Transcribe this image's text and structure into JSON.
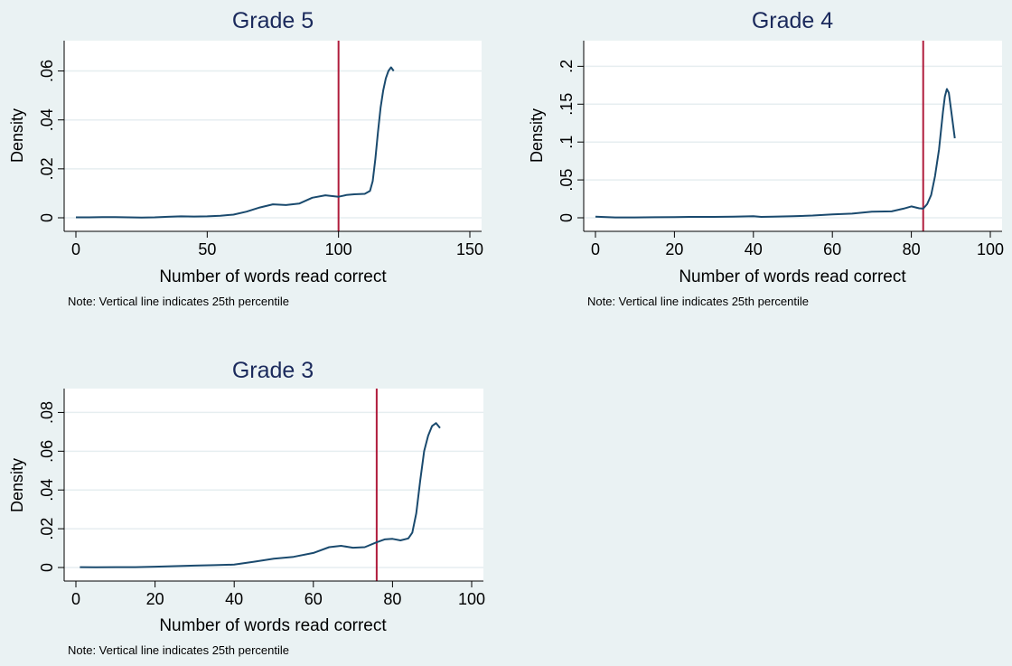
{
  "chart_data": [
    {
      "type": "line",
      "title": "Grade 5",
      "xlabel": "Number of words read correct",
      "ylabel": "Density",
      "note": "Note: Vertical line indicates 25th percentile",
      "xlim": [
        0,
        150
      ],
      "ylim": [
        0,
        0.065
      ],
      "xticks": [
        0,
        50,
        100,
        150
      ],
      "xtick_labels": [
        "0",
        "50",
        "100",
        "150"
      ],
      "yticks": [
        0,
        0.02,
        0.04,
        0.06
      ],
      "ytick_labels": [
        "0",
        ".02",
        ".04",
        ".06"
      ],
      "grid": true,
      "vline": 100,
      "series": [
        {
          "x": [
            0,
            5,
            10,
            15,
            20,
            25,
            30,
            35,
            40,
            45,
            50,
            55,
            60,
            65,
            70,
            75,
            80,
            85,
            90,
            95,
            100,
            103,
            106,
            110,
            112,
            113,
            114,
            115,
            116,
            117,
            118,
            119,
            120,
            121
          ],
          "values": [
            0.0002,
            0.0002,
            0.0003,
            0.0003,
            0.0002,
            0.0001,
            0.0002,
            0.0004,
            0.0006,
            0.0005,
            0.0006,
            0.0008,
            0.0013,
            0.0025,
            0.0042,
            0.0055,
            0.0052,
            0.0058,
            0.0082,
            0.0092,
            0.0086,
            0.0093,
            0.0096,
            0.0098,
            0.011,
            0.015,
            0.024,
            0.035,
            0.045,
            0.052,
            0.057,
            0.06,
            0.0615,
            0.06
          ]
        }
      ]
    },
    {
      "type": "line",
      "title": "Grade 4",
      "xlabel": "Number of words read correct",
      "ylabel": "Density",
      "note": "Note: Vertical line indicates 25th percentile",
      "xlim": [
        0,
        100
      ],
      "ylim": [
        0,
        0.21
      ],
      "xticks": [
        0,
        20,
        40,
        60,
        80,
        100
      ],
      "xtick_labels": [
        "0",
        "20",
        "40",
        "60",
        "80",
        "100"
      ],
      "yticks": [
        0,
        0.05,
        0.1,
        0.15,
        0.2
      ],
      "ytick_labels": [
        "0",
        ".05",
        ".1",
        ".15",
        ".2"
      ],
      "grid": true,
      "vline": 83,
      "series": [
        {
          "x": [
            0,
            5,
            10,
            15,
            20,
            25,
            30,
            35,
            40,
            42,
            45,
            50,
            55,
            60,
            65,
            70,
            75,
            78,
            80,
            82,
            83,
            84,
            85,
            86,
            87,
            88,
            88.5,
            89,
            89.5,
            90,
            91
          ],
          "values": [
            0.0015,
            0.0005,
            0.0005,
            0.0007,
            0.001,
            0.0012,
            0.0012,
            0.0015,
            0.002,
            0.0012,
            0.0015,
            0.002,
            0.003,
            0.0045,
            0.0055,
            0.008,
            0.0085,
            0.012,
            0.015,
            0.0125,
            0.012,
            0.018,
            0.03,
            0.055,
            0.09,
            0.14,
            0.16,
            0.17,
            0.165,
            0.145,
            0.105
          ]
        }
      ]
    },
    {
      "type": "line",
      "title": "Grade 3",
      "xlabel": "Number of words read correct",
      "ylabel": "Density",
      "note": "Note: Vertical line indicates 25th percentile",
      "xlim": [
        0,
        100
      ],
      "ylim": [
        0,
        0.083
      ],
      "xticks": [
        0,
        20,
        40,
        60,
        80,
        100
      ],
      "xtick_labels": [
        "0",
        "20",
        "40",
        "60",
        "80",
        "100"
      ],
      "yticks": [
        0,
        0.02,
        0.04,
        0.06,
        0.08
      ],
      "ytick_labels": [
        "0",
        ".02",
        ".04",
        ".06",
        ".08"
      ],
      "grid": true,
      "vline": 76,
      "series": [
        {
          "x": [
            1,
            5,
            10,
            15,
            20,
            25,
            30,
            35,
            40,
            45,
            50,
            55,
            60,
            64,
            67,
            70,
            73,
            76,
            78,
            80,
            82,
            84,
            85,
            86,
            87,
            88,
            89,
            90,
            91,
            92
          ],
          "values": [
            0.0002,
            0.0001,
            0.0002,
            0.0002,
            0.0004,
            0.0007,
            0.001,
            0.0012,
            0.0015,
            0.003,
            0.0045,
            0.0055,
            0.0075,
            0.0105,
            0.0112,
            0.0102,
            0.0105,
            0.013,
            0.0145,
            0.0148,
            0.014,
            0.015,
            0.018,
            0.028,
            0.045,
            0.06,
            0.068,
            0.073,
            0.0745,
            0.072
          ]
        }
      ]
    }
  ]
}
